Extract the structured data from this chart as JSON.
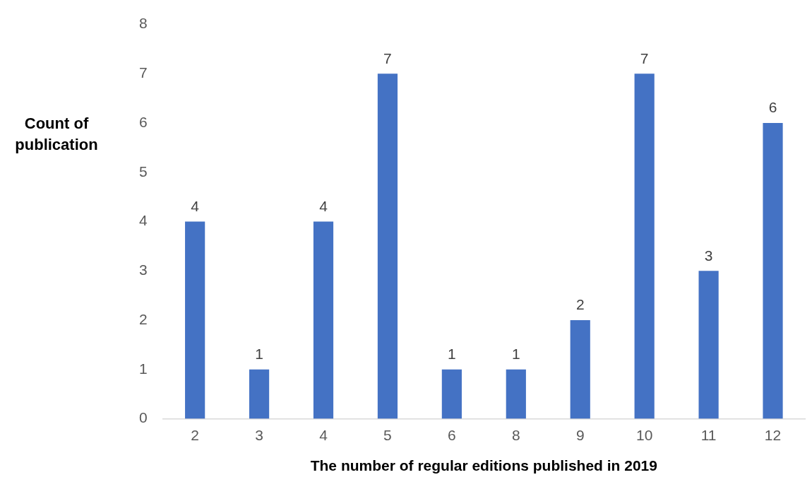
{
  "chart_data": {
    "type": "bar",
    "xlabel": "The number of regular editions published in 2019",
    "ylabel": "Count of publication",
    "categories": [
      "2",
      "3",
      "4",
      "5",
      "6",
      "8",
      "9",
      "10",
      "11",
      "12"
    ],
    "values": [
      4,
      1,
      4,
      7,
      1,
      1,
      2,
      7,
      3,
      6
    ],
    "color": "#4472c4",
    "ylim": [
      0,
      8
    ],
    "yticks": [
      0,
      1,
      2,
      3,
      4,
      5,
      6,
      7,
      8
    ],
    "grid": false,
    "legend": false,
    "data_labels": true
  }
}
